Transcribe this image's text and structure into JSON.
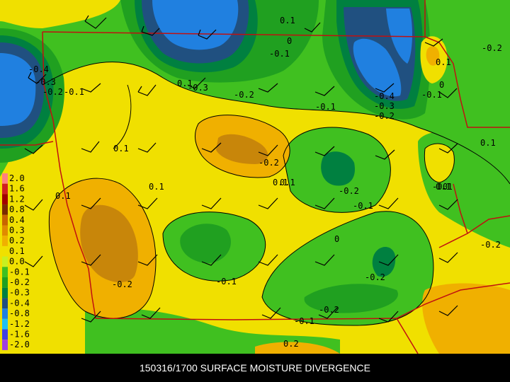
{
  "caption": "150316/1700 SURFACE MOISTURE DIVERGENCE",
  "legend": [
    {
      "label": "2.0",
      "color": "#ff8080"
    },
    {
      "label": "1.6",
      "color": "#d02020"
    },
    {
      "label": "1.2",
      "color": "#a00000"
    },
    {
      "label": "0.8",
      "color": "#7a2a00"
    },
    {
      "label": "0.4",
      "color": "#c86400"
    },
    {
      "label": "0.3",
      "color": "#e08a00"
    },
    {
      "label": "0.2",
      "color": "#f0b000"
    },
    {
      "label": "0.1",
      "color": "#f0e000"
    },
    {
      "label": "0.0",
      "color": "#c8f020"
    },
    {
      "label": "-0.1",
      "color": "#40c020"
    },
    {
      "label": "-0.2",
      "color": "#20a020"
    },
    {
      "label": "-0.3",
      "color": "#008040"
    },
    {
      "label": "-0.4",
      "color": "#205080"
    },
    {
      "label": "-0.8",
      "color": "#2080e0"
    },
    {
      "label": "-1.2",
      "color": "#20c0f0"
    },
    {
      "label": "-1.6",
      "color": "#4040e0"
    },
    {
      "label": "-2.0",
      "color": "#a040e0"
    }
  ],
  "contour_labels": [
    "0.1",
    "0",
    "-0.4",
    "-0.3",
    "-0.2",
    "-0.1",
    "-0.1",
    "-0.3",
    "-0.2",
    "0.1",
    "-0.1",
    "0.1",
    "-0.4",
    "-0.3",
    "-0.2",
    "-0.1",
    "0.1",
    "-0.2",
    "0.1",
    "0.1",
    "0.1",
    "-0.2",
    "0.1",
    "0",
    "-0.1",
    "-0.2",
    "0",
    "0.1",
    "-0.2",
    "-0.1",
    "-0.2",
    "-0.2",
    "-0.1",
    "0.2",
    "-0.2",
    "-0.1",
    "0",
    "0.1"
  ],
  "colors": {
    "yellow": "#f0e000",
    "orange": "#f0b000",
    "brown": "#c8860a",
    "lightgreen": "#40c020",
    "green": "#20a020",
    "darkgreen": "#008040",
    "navy": "#205080",
    "blue": "#2080e0",
    "border": "#c01010"
  }
}
